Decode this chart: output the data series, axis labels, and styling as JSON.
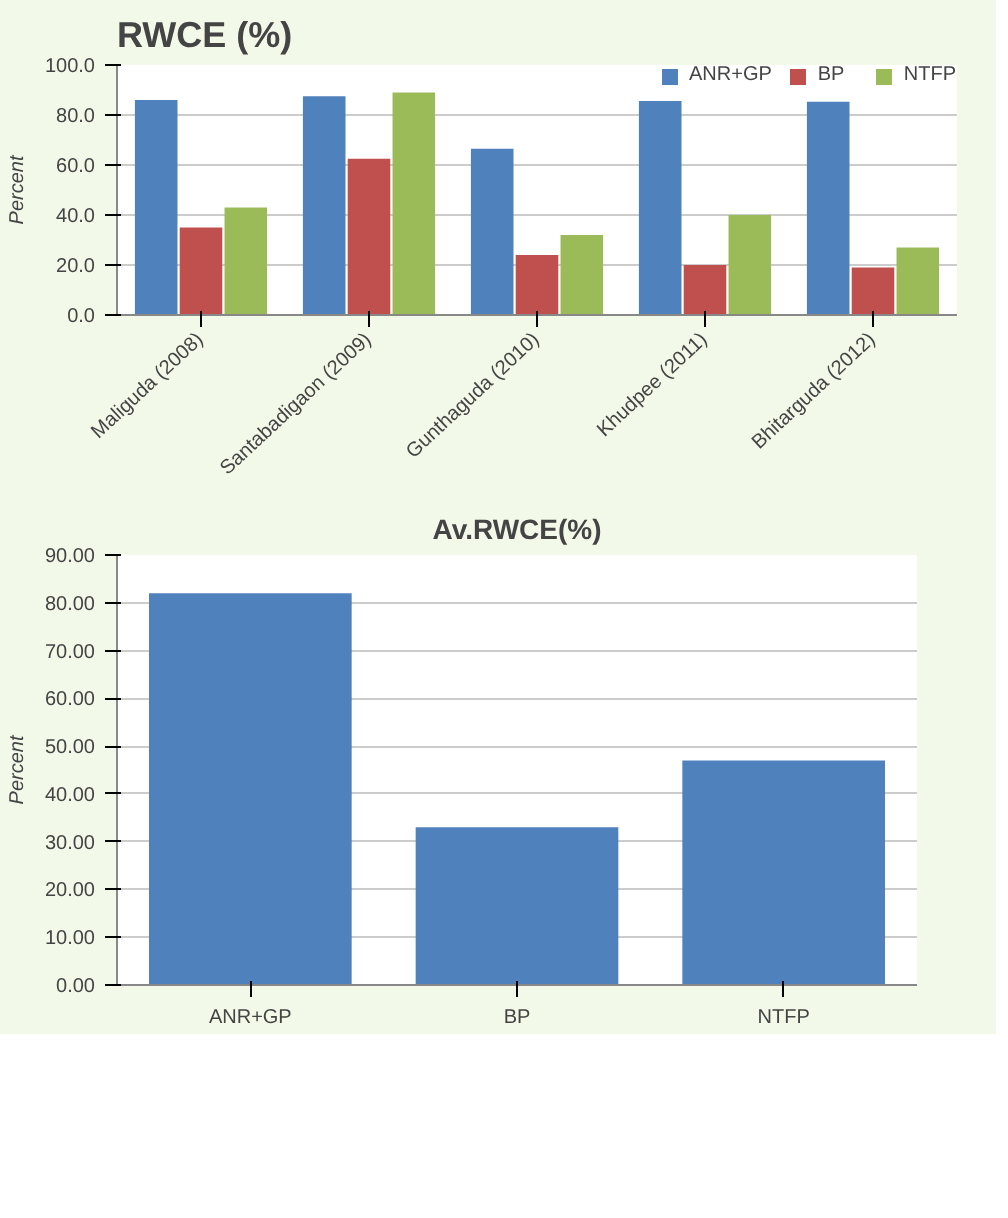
{
  "chart_data": [
    {
      "type": "bar",
      "title": "RWCE (%)",
      "ylabel": "Percent",
      "categories": [
        "Maliguda (2008)",
        "Santabadigaon (2009)",
        "Gunthaguda (2010)",
        "Khudpee (2011)",
        "Bhitarguda (2012)"
      ],
      "series": [
        {
          "name": "ANR+GP",
          "color": "#4f81bd",
          "values": [
            86,
            87.5,
            66.5,
            85.6,
            85.3
          ]
        },
        {
          "name": "BP",
          "color": "#c0504d",
          "values": [
            35,
            62.5,
            24,
            20,
            19
          ]
        },
        {
          "name": "NTFP",
          "color": "#9bbb59",
          "values": [
            43,
            89,
            32,
            40,
            27
          ]
        }
      ],
      "ylim": [
        0,
        100
      ],
      "yticks": [
        {
          "value": 0,
          "label": "0.0"
        },
        {
          "value": 20,
          "label": "20.0"
        },
        {
          "value": 40,
          "label": "40.0"
        },
        {
          "value": 60,
          "label": "60.0"
        },
        {
          "value": 80,
          "label": "80.0"
        },
        {
          "value": 100,
          "label": "100.0"
        }
      ],
      "grid": "y",
      "legend": "top right"
    },
    {
      "type": "bar",
      "title": "Av.RWCE(%)",
      "ylabel": "Percent",
      "categories": [
        "ANR+GP",
        "BP",
        "NTFP"
      ],
      "values": [
        82,
        33,
        47
      ],
      "color": "#4f81bd",
      "ylim": [
        0,
        90
      ],
      "yticks": [
        {
          "value": 0,
          "label": "0.00"
        },
        {
          "value": 10,
          "label": "10.00"
        },
        {
          "value": 20,
          "label": "20.00"
        },
        {
          "value": 30,
          "label": "30.00"
        },
        {
          "value": 40,
          "label": "40.00"
        },
        {
          "value": 50,
          "label": "50.00"
        },
        {
          "value": 60,
          "label": "60.00"
        },
        {
          "value": 70,
          "label": "70.00"
        },
        {
          "value": 80,
          "label": "80.00"
        },
        {
          "value": 90,
          "label": "90.00"
        }
      ],
      "grid": "y"
    }
  ]
}
